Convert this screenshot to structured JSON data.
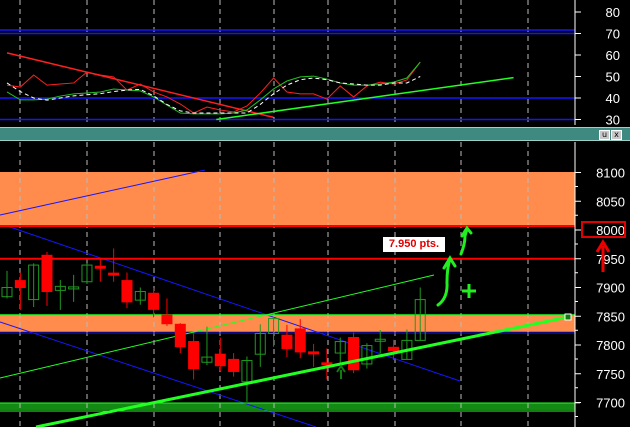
{
  "colors": {
    "background": "#000000",
    "up": "#1f9a1f",
    "down": "#ff0000",
    "resistance": "#ff0000",
    "support_line": "#22ff22",
    "zone": "#ff8c4c",
    "support_zone": "#138a13",
    "channel": "#1515ff",
    "panel_bar": "#3f8a80"
  },
  "annotation": {
    "label": "7.950 pts.",
    "highlighted_level": "8000"
  },
  "panel_buttons": [
    {
      "icon": "restore-icon",
      "label": "u"
    },
    {
      "icon": "close-icon",
      "label": "x"
    }
  ],
  "chart_data": [
    {
      "type": "line",
      "panel": "oscillator",
      "ylim": [
        28,
        85
      ],
      "y_ticks": [
        "80",
        "70",
        "60",
        "50",
        "40",
        "30"
      ],
      "reference_lines": [
        70,
        40,
        30
      ],
      "grid": "vertical dashed",
      "series": [
        {
          "color": "#ff2020",
          "values": [
            46.0,
            45.1,
            50.7,
            46,
            46.5,
            47,
            52.1,
            50.7,
            49.8,
            43.7,
            46.5,
            42.8,
            40.5,
            37.2,
            33.0,
            35.8,
            34.4,
            33.5,
            36.3,
            42.3,
            49.3,
            42.8,
            41.9,
            41.9,
            39.5,
            45.6,
            40.5,
            45.6,
            47.4,
            46.5,
            48.4,
            56.7
          ]
        },
        {
          "color": "#22c022",
          "values": [
            42.8,
            39.1,
            39.1,
            39.5,
            40.9,
            41.9,
            42.3,
            42.8,
            44.2,
            43.7,
            43.3,
            40.5,
            36.7,
            33.0,
            32.6,
            32.6,
            32.6,
            33.0,
            34.4,
            39.1,
            44.2,
            47.9,
            49.8,
            50.2,
            48.8,
            47.0,
            46.0,
            46.0,
            46.5,
            47.4,
            49.3,
            56.7
          ]
        },
        {
          "color": "#ffffff",
          "dashed": true,
          "values": [
            47,
            43,
            40,
            39,
            40,
            41,
            41.5,
            42,
            43,
            43.7,
            44,
            41,
            37,
            34,
            33,
            33,
            33,
            33,
            33,
            37,
            42,
            46,
            48.5,
            49.3,
            48.5,
            47,
            46.5,
            46,
            46,
            47,
            47,
            50
          ]
        }
      ],
      "trendlines": [
        {
          "color": "#ff2020",
          "from": [
            0,
            61
          ],
          "to": [
            20,
            31
          ]
        },
        {
          "color": "#22ff22",
          "from": [
            15.7,
            30
          ],
          "to": [
            38,
            49.5
          ]
        }
      ]
    },
    {
      "type": "candlestick",
      "panel": "price",
      "ylim": [
        7655,
        8120
      ],
      "y_ticks": [
        "8100",
        "8050",
        "8000",
        "7950",
        "7900",
        "7850",
        "7800",
        "7750",
        "7700"
      ],
      "grid": "vertical dashed",
      "candles": [
        {
          "o": 7884,
          "h": 7929,
          "l": 7881,
          "c": 7900
        },
        {
          "o": 7912,
          "h": 7926,
          "l": 7861,
          "c": 7900
        },
        {
          "o": 7879,
          "h": 7942,
          "l": 7866,
          "c": 7939
        },
        {
          "o": 7956,
          "h": 7962,
          "l": 7868,
          "c": 7893
        },
        {
          "o": 7895,
          "h": 7913,
          "l": 7861,
          "c": 7902
        },
        {
          "o": 7900,
          "h": 7922,
          "l": 7875,
          "c": 7901
        },
        {
          "o": 7910,
          "h": 7942,
          "l": 7906,
          "c": 7939
        },
        {
          "o": 7937,
          "h": 7949,
          "l": 7910,
          "c": 7935
        },
        {
          "o": 7925,
          "h": 7968,
          "l": 7910,
          "c": 7923
        },
        {
          "o": 7912,
          "h": 7926,
          "l": 7864,
          "c": 7875
        },
        {
          "o": 7878,
          "h": 7900,
          "l": 7870,
          "c": 7893
        },
        {
          "o": 7890,
          "h": 7899,
          "l": 7848,
          "c": 7862
        },
        {
          "o": 7852,
          "h": 7881,
          "l": 7833,
          "c": 7837
        },
        {
          "o": 7836,
          "h": 7838,
          "l": 7786,
          "c": 7797
        },
        {
          "o": 7806,
          "h": 7820,
          "l": 7740,
          "c": 7759
        },
        {
          "o": 7770,
          "h": 7832,
          "l": 7765,
          "c": 7779
        },
        {
          "o": 7784,
          "h": 7813,
          "l": 7755,
          "c": 7764
        },
        {
          "o": 7775,
          "h": 7786,
          "l": 7745,
          "c": 7754
        },
        {
          "o": 7736,
          "h": 7780,
          "l": 7701,
          "c": 7773
        },
        {
          "o": 7784,
          "h": 7836,
          "l": 7762,
          "c": 7820
        },
        {
          "o": 7820,
          "h": 7849,
          "l": 7797,
          "c": 7846
        },
        {
          "o": 7817,
          "h": 7835,
          "l": 7779,
          "c": 7794
        },
        {
          "o": 7828,
          "h": 7845,
          "l": 7777,
          "c": 7788
        },
        {
          "o": 7788,
          "h": 7802,
          "l": 7762,
          "c": 7786
        },
        {
          "o": 7769,
          "h": 7794,
          "l": 7740,
          "c": 7767
        },
        {
          "o": 7786,
          "h": 7813,
          "l": 7768,
          "c": 7806
        },
        {
          "o": 7813,
          "h": 7822,
          "l": 7751,
          "c": 7757
        },
        {
          "o": 7767,
          "h": 7803,
          "l": 7759,
          "c": 7799
        },
        {
          "o": 7808,
          "h": 7826,
          "l": 7786,
          "c": 7810
        },
        {
          "o": 7796,
          "h": 7809,
          "l": 7774,
          "c": 7790
        },
        {
          "o": 7775,
          "h": 7827,
          "l": 7775,
          "c": 7808
        },
        {
          "o": 7808,
          "h": 7900,
          "l": 7808,
          "c": 7879
        }
      ],
      "horizontal_levels": [
        8000,
        7950,
        7852,
        7823,
        7700
      ],
      "zones": [
        {
          "from": 8000,
          "to": 8100,
          "color": "#ff8c4c"
        },
        {
          "from": 7823,
          "to": 7852,
          "color": "#ff8c4c"
        },
        {
          "from": 7687,
          "to": 7700,
          "color": "#138a13"
        }
      ]
    }
  ]
}
